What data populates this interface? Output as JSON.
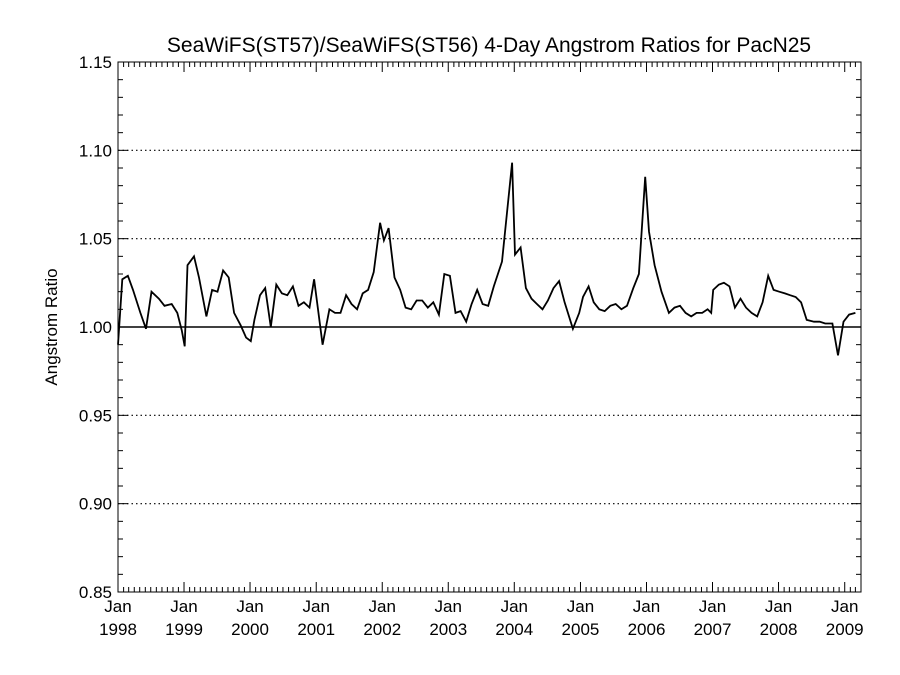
{
  "chart_data": {
    "type": "line",
    "title": "SeaWiFS(ST57)/SeaWiFS(ST56) 4-Day Angstrom Ratios for PacN25",
    "xlabel": "",
    "ylabel": "Angstrom Ratio",
    "xlim": [
      "1998-01-01",
      "2009-04-01"
    ],
    "ylim": [
      0.85,
      1.15
    ],
    "yticks": [
      "0.85",
      "0.90",
      "0.95",
      "1.00",
      "1.05",
      "1.10",
      "1.15"
    ],
    "dotted_gridlines_at": [
      0.9,
      0.95,
      1.05,
      1.1
    ],
    "reference_line": 1.0,
    "xticks": [
      {
        "x": "1998-01-01",
        "month": "Jan",
        "year": "1998"
      },
      {
        "x": "1999-01-01",
        "month": "Jan",
        "year": "1999"
      },
      {
        "x": "2000-01-01",
        "month": "Jan",
        "year": "2000"
      },
      {
        "x": "2001-01-01",
        "month": "Jan",
        "year": "2001"
      },
      {
        "x": "2002-01-01",
        "month": "Jan",
        "year": "2002"
      },
      {
        "x": "2003-01-01",
        "month": "Jan",
        "year": "2003"
      },
      {
        "x": "2004-01-01",
        "month": "Jan",
        "year": "2004"
      },
      {
        "x": "2005-01-01",
        "month": "Jan",
        "year": "2005"
      },
      {
        "x": "2006-01-01",
        "month": "Jan",
        "year": "2006"
      },
      {
        "x": "2007-01-01",
        "month": "Jan",
        "year": "2007"
      },
      {
        "x": "2008-01-01",
        "month": "Jan",
        "year": "2008"
      },
      {
        "x": "2009-01-01",
        "month": "Jan",
        "year": "2009"
      }
    ],
    "series": [
      {
        "values": [
          [
            "1997-12-20",
            0.99
          ],
          [
            "1998-01-25",
            1.027
          ],
          [
            "1998-02-25",
            1.029
          ],
          [
            "1998-03-25",
            1.021
          ],
          [
            "1998-05-05",
            1.008
          ],
          [
            "1998-06-05",
            0.999
          ],
          [
            "1998-07-05",
            1.02
          ],
          [
            "1998-08-15",
            1.016
          ],
          [
            "1998-09-15",
            1.012
          ],
          [
            "1998-10-25",
            1.013
          ],
          [
            "1998-11-25",
            1.008
          ],
          [
            "1998-12-20",
            0.998
          ],
          [
            "1999-01-05",
            0.989
          ],
          [
            "1999-01-20",
            1.035
          ],
          [
            "1999-02-25",
            1.04
          ],
          [
            "1999-03-25",
            1.028
          ],
          [
            "1999-05-05",
            1.006
          ],
          [
            "1999-06-05",
            1.021
          ],
          [
            "1999-07-05",
            1.02
          ],
          [
            "1999-08-05",
            1.032
          ],
          [
            "1999-09-05",
            1.028
          ],
          [
            "1999-10-05",
            1.008
          ],
          [
            "1999-11-10",
            1.001
          ],
          [
            "1999-12-10",
            0.994
          ],
          [
            "2000-01-05",
            0.992
          ],
          [
            "2000-01-25",
            1.004
          ],
          [
            "2000-02-25",
            1.018
          ],
          [
            "2000-03-25",
            1.022
          ],
          [
            "2000-04-25",
            1.0
          ],
          [
            "2000-05-25",
            1.024
          ],
          [
            "2000-06-25",
            1.019
          ],
          [
            "2000-07-25",
            1.018
          ],
          [
            "2000-08-25",
            1.023
          ],
          [
            "2000-09-25",
            1.012
          ],
          [
            "2000-10-25",
            1.014
          ],
          [
            "2000-11-25",
            1.011
          ],
          [
            "2000-12-20",
            1.027
          ],
          [
            "2001-02-05",
            0.99
          ],
          [
            "2001-03-15",
            1.01
          ],
          [
            "2001-04-15",
            1.008
          ],
          [
            "2001-05-15",
            1.008
          ],
          [
            "2001-06-15",
            1.018
          ],
          [
            "2001-07-15",
            1.013
          ],
          [
            "2001-08-15",
            1.01
          ],
          [
            "2001-09-15",
            1.019
          ],
          [
            "2001-10-15",
            1.021
          ],
          [
            "2001-11-15",
            1.031
          ],
          [
            "2001-12-20",
            1.059
          ],
          [
            "2002-01-10",
            1.049
          ],
          [
            "2002-02-05",
            1.056
          ],
          [
            "2002-03-10",
            1.028
          ],
          [
            "2002-04-10",
            1.021
          ],
          [
            "2002-05-10",
            1.011
          ],
          [
            "2002-06-10",
            1.01
          ],
          [
            "2002-07-10",
            1.015
          ],
          [
            "2002-08-10",
            1.015
          ],
          [
            "2002-09-10",
            1.011
          ],
          [
            "2002-10-10",
            1.014
          ],
          [
            "2002-11-10",
            1.007
          ],
          [
            "2002-12-10",
            1.03
          ],
          [
            "2003-01-10",
            1.029
          ],
          [
            "2003-02-10",
            1.008
          ],
          [
            "2003-03-10",
            1.009
          ],
          [
            "2003-04-10",
            1.003
          ],
          [
            "2003-05-10",
            1.013
          ],
          [
            "2003-06-10",
            1.021
          ],
          [
            "2003-07-10",
            1.013
          ],
          [
            "2003-08-10",
            1.012
          ],
          [
            "2003-09-10",
            1.023
          ],
          [
            "2003-10-25",
            1.037
          ],
          [
            "2003-12-20",
            1.093
          ],
          [
            "2004-01-05",
            1.041
          ],
          [
            "2004-02-05",
            1.045
          ],
          [
            "2004-03-05",
            1.022
          ],
          [
            "2004-04-05",
            1.016
          ],
          [
            "2004-05-05",
            1.013
          ],
          [
            "2004-06-05",
            1.01
          ],
          [
            "2004-07-05",
            1.015
          ],
          [
            "2004-08-05",
            1.022
          ],
          [
            "2004-09-05",
            1.026
          ],
          [
            "2004-10-05",
            1.014
          ],
          [
            "2004-11-20",
            0.999
          ],
          [
            "2004-12-25",
            1.008
          ],
          [
            "2005-01-15",
            1.017
          ],
          [
            "2005-02-15",
            1.023
          ],
          [
            "2005-03-15",
            1.014
          ],
          [
            "2005-04-15",
            1.01
          ],
          [
            "2005-05-15",
            1.009
          ],
          [
            "2005-06-15",
            1.012
          ],
          [
            "2005-07-15",
            1.013
          ],
          [
            "2005-08-15",
            1.01
          ],
          [
            "2005-09-15",
            1.012
          ],
          [
            "2005-10-20",
            1.022
          ],
          [
            "2005-11-20",
            1.03
          ],
          [
            "2005-12-25",
            1.085
          ],
          [
            "2006-01-15",
            1.054
          ],
          [
            "2006-02-15",
            1.035
          ],
          [
            "2006-03-25",
            1.02
          ],
          [
            "2006-05-05",
            1.008
          ],
          [
            "2006-06-05",
            1.011
          ],
          [
            "2006-07-05",
            1.012
          ],
          [
            "2006-08-05",
            1.008
          ],
          [
            "2006-09-05",
            1.006
          ],
          [
            "2006-10-05",
            1.008
          ],
          [
            "2006-11-05",
            1.008
          ],
          [
            "2006-12-05",
            1.01
          ],
          [
            "2006-12-25",
            1.008
          ],
          [
            "2007-01-05",
            1.021
          ],
          [
            "2007-02-05",
            1.024
          ],
          [
            "2007-03-05",
            1.025
          ],
          [
            "2007-04-05",
            1.023
          ],
          [
            "2007-05-05",
            1.011
          ],
          [
            "2007-06-05",
            1.016
          ],
          [
            "2007-07-05",
            1.011
          ],
          [
            "2007-08-05",
            1.008
          ],
          [
            "2007-09-05",
            1.006
          ],
          [
            "2007-10-05",
            1.014
          ],
          [
            "2007-11-05",
            1.029
          ],
          [
            "2007-12-05",
            1.021
          ],
          [
            "2008-01-05",
            1.02
          ],
          [
            "2008-02-05",
            1.019
          ],
          [
            "2008-03-05",
            1.018
          ],
          [
            "2008-04-05",
            1.017
          ],
          [
            "2008-05-05",
            1.014
          ],
          [
            "2008-06-05",
            1.004
          ],
          [
            "2008-07-15",
            1.003
          ],
          [
            "2008-08-15",
            1.003
          ],
          [
            "2008-09-15",
            1.002
          ],
          [
            "2008-10-25",
            1.002
          ],
          [
            "2008-11-25",
            0.984
          ],
          [
            "2008-12-25",
            1.003
          ],
          [
            "2009-01-25",
            1.007
          ],
          [
            "2009-03-01",
            1.008
          ]
        ]
      }
    ]
  }
}
